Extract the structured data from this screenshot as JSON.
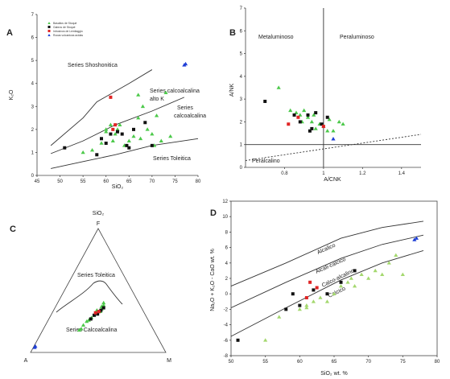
{
  "colors": {
    "green": "#4cc94a",
    "light_green": "#a4d86e",
    "black": "#111111",
    "red": "#e02424",
    "blue": "#1f3fd6"
  },
  "legend_A": [
    "Basaltos de Stoqué",
    "Gabros de Stoqué",
    "Intrusivos de Lemitaggio",
    "Rocas volcanicas acidas"
  ],
  "chart_data": [
    {
      "id": "A",
      "type": "scatter",
      "panel_label": "A",
      "xlabel": "SiO₂",
      "ylabel": "K₂O",
      "xlim": [
        45,
        80
      ],
      "ylim": [
        0,
        7
      ],
      "xticks": [
        45,
        50,
        55,
        60,
        65,
        70,
        75,
        80
      ],
      "yticks": [
        0,
        1,
        2,
        3,
        4,
        5,
        6,
        7
      ],
      "region_labels": [
        "Series Shoshonitica",
        "Series calcoalcalina alto K",
        "Series calcoalcalina",
        "Series Toleitica"
      ],
      "series": [
        {
          "name": "Basaltos de Stoqué",
          "marker": "triangle",
          "color": "green",
          "x": [
            55,
            57,
            60,
            61.5,
            62,
            62.5,
            63,
            65,
            66,
            67,
            67.5,
            68,
            69,
            70,
            70.5,
            71,
            72,
            73,
            74,
            67,
            60,
            59,
            61,
            64
          ],
          "y": [
            1.0,
            1.1,
            2.0,
            1.5,
            1.8,
            2.0,
            2.2,
            1.5,
            1.7,
            2.5,
            1.6,
            3.0,
            2.0,
            1.8,
            1.3,
            2.6,
            1.5,
            3.6,
            1.7,
            3.5,
            1.9,
            1.4,
            2.2,
            1.3
          ]
        },
        {
          "name": "Gabros de Stoqué",
          "marker": "square",
          "color": "black",
          "x": [
            51,
            58,
            59,
            60,
            62.5,
            63.5,
            64.5,
            66,
            68.5,
            70,
            61,
            65
          ],
          "y": [
            1.2,
            0.9,
            1.6,
            1.4,
            1.9,
            1.8,
            1.3,
            2.0,
            2.3,
            1.3,
            1.8,
            1.2
          ]
        },
        {
          "name": "Intrusivos de Lemitaggio",
          "marker": "square",
          "color": "red",
          "x": [
            61,
            62,
            61.5
          ],
          "y": [
            3.4,
            2.2,
            2.0
          ]
        },
        {
          "name": "Rocas volcanicas acidas",
          "marker": "triangle",
          "color": "blue",
          "x": [
            77,
            77.3
          ],
          "y": [
            4.8,
            4.85
          ]
        }
      ]
    },
    {
      "id": "B",
      "type": "scatter",
      "panel_label": "B",
      "xlabel": "A/CNK",
      "ylabel": "A/NK",
      "xlim": [
        0.6,
        1.5
      ],
      "ylim": [
        0,
        7
      ],
      "xticks": [
        0.8,
        1.0,
        1.2,
        1.4
      ],
      "yticks": [
        0,
        1,
        2,
        3,
        4,
        5,
        6,
        7
      ],
      "region_labels": [
        "Metaluminoso",
        "Peraluminoso",
        "Peralcalino"
      ],
      "series": [
        {
          "name": "Basaltos de Stoqué",
          "marker": "triangle",
          "color": "green",
          "x": [
            0.77,
            0.83,
            0.86,
            0.88,
            0.9,
            0.92,
            0.94,
            0.96,
            0.98,
            1.0,
            1.03,
            1.05,
            1.08,
            1.1,
            0.89,
            0.95,
            1.02
          ],
          "y": [
            3.5,
            2.5,
            2.4,
            2.3,
            2.5,
            2.2,
            2.0,
            1.7,
            1.9,
            1.8,
            2.1,
            1.6,
            2.0,
            1.9,
            2.0,
            2.3,
            1.6
          ]
        },
        {
          "name": "Gabros de Stoqué",
          "marker": "square",
          "color": "black",
          "x": [
            0.7,
            0.85,
            0.88,
            0.92,
            0.94,
            0.96,
            0.99,
            1.02,
            0.93
          ],
          "y": [
            2.9,
            2.3,
            2.0,
            2.3,
            1.7,
            2.4,
            1.9,
            2.2,
            1.6
          ]
        },
        {
          "name": "Intrusivos de Lemitaggio",
          "marker": "square",
          "color": "red",
          "x": [
            0.82,
            0.87,
            1.0
          ],
          "y": [
            1.9,
            2.2,
            1.8
          ]
        },
        {
          "name": "Rocas volcanicas acidas",
          "marker": "triangle",
          "color": "blue",
          "x": [
            1.05
          ],
          "y": [
            1.25
          ]
        }
      ]
    },
    {
      "id": "C",
      "type": "scatter",
      "panel_label": "C",
      "vertex_labels": [
        "SiO₂",
        "F",
        "A",
        "M"
      ],
      "region_labels": [
        "Series Toleitica",
        "Series Calcoalcalina"
      ],
      "note": "AFM ternary; points given as fractions (A, F, M)",
      "series": [
        {
          "name": "Basaltos de Stoqué",
          "marker": "triangle",
          "color": "green",
          "a": [
            0.55,
            0.53,
            0.5,
            0.46,
            0.44,
            0.41,
            0.38,
            0.36,
            0.34,
            0.32,
            0.3,
            0.29,
            0.27,
            0.26
          ],
          "f": [
            0.18,
            0.19,
            0.22,
            0.25,
            0.26,
            0.28,
            0.3,
            0.32,
            0.34,
            0.33,
            0.35,
            0.37,
            0.38,
            0.4
          ]
        },
        {
          "name": "Gabros de Stoqué",
          "marker": "square",
          "color": "black",
          "a": [
            0.42,
            0.38,
            0.35,
            0.33,
            0.31,
            0.28
          ],
          "f": [
            0.27,
            0.3,
            0.31,
            0.33,
            0.34,
            0.36
          ]
        },
        {
          "name": "Intrusivos de Lemitaggio",
          "marker": "square",
          "color": "red",
          "a": [
            0.36,
            0.33
          ],
          "f": [
            0.32,
            0.33
          ]
        },
        {
          "name": "Rocas volcanicas acidas",
          "marker": "triangle",
          "color": "blue",
          "a": [
            0.95,
            0.94
          ],
          "f": [
            0.04,
            0.05
          ]
        }
      ]
    },
    {
      "id": "D",
      "type": "scatter",
      "panel_label": "D",
      "xlabel": "SiO₂ wt. %",
      "ylabel": "Na₂O + K₂O - CaO  wt. %",
      "xlim": [
        50,
        80
      ],
      "ylim": [
        -8,
        12
      ],
      "xticks": [
        50,
        55,
        60,
        65,
        70,
        75,
        80
      ],
      "yticks": [
        -8,
        -6,
        -4,
        -2,
        0,
        2,
        4,
        6,
        8,
        10,
        12
      ],
      "region_labels": [
        "Alcalico",
        "Alcali-calcico",
        "Calco-alcalino",
        "Calcico"
      ],
      "series": [
        {
          "name": "Basaltos de Stoqué",
          "marker": "triangle",
          "color": "light_green",
          "x": [
            55,
            57,
            60,
            61,
            62,
            63,
            65,
            66,
            67,
            67.5,
            68,
            69,
            70,
            71,
            72,
            73,
            74,
            75,
            64,
            61
          ],
          "y": [
            -6.0,
            -3.0,
            -2.0,
            -1.5,
            -1.0,
            -0.5,
            0.0,
            1.0,
            1.5,
            2.0,
            1.0,
            2.5,
            2.0,
            3.0,
            2.5,
            4.0,
            5.0,
            2.5,
            -1.0,
            -1.8
          ]
        },
        {
          "name": "Gabros de Stoqué",
          "marker": "square",
          "color": "black",
          "x": [
            51,
            58,
            59,
            60,
            62,
            64,
            66,
            68
          ],
          "y": [
            -6.0,
            -2.0,
            0.0,
            -1.5,
            0.5,
            0.0,
            1.5,
            3.0
          ]
        },
        {
          "name": "Intrusivos de Lemitaggio",
          "marker": "square",
          "color": "red",
          "x": [
            61.5,
            62.5,
            61
          ],
          "y": [
            1.5,
            0.8,
            -0.5
          ]
        },
        {
          "name": "Rocas volcanicas acidas",
          "marker": "triangle",
          "color": "blue",
          "x": [
            76.7,
            77
          ],
          "y": [
            7.0,
            7.2
          ]
        }
      ]
    }
  ]
}
